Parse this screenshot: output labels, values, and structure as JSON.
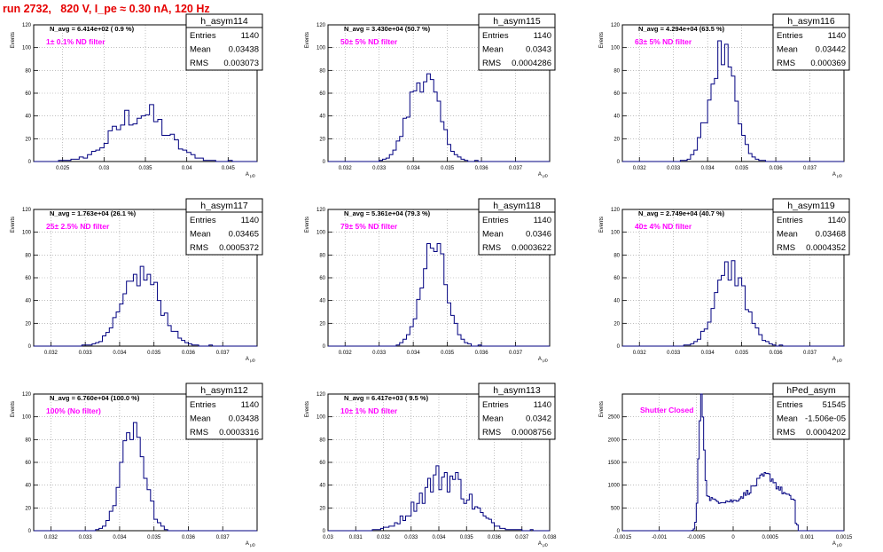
{
  "header": {
    "title": "run 2732,   820 V, I_pe ≈ 0.30 nA, 120 Hz"
  },
  "colors": {
    "title": "#e60000",
    "histogram": "#000080",
    "annotation": "#ff00ff",
    "grid": "#999999"
  },
  "stats_labels": {
    "entries": "Entries",
    "mean": "Mean",
    "rms": "RMS"
  },
  "chart_data": [
    {
      "type": "histogram",
      "title": "h_asym114",
      "ylabel": "Events",
      "xlabel": "A_{μD}",
      "xlim": [
        0.0215,
        0.0485
      ],
      "ylim": [
        0,
        120
      ],
      "xticks": [
        "0.025",
        "0.03",
        "0.035",
        "0.04",
        "0.045"
      ],
      "yticks": [
        "0",
        "20",
        "40",
        "60",
        "80",
        "100",
        "120"
      ],
      "grid": true,
      "n_avg": "N_avg = 6.414e+02 ( 0.9 %)",
      "filter": "1± 0.1% ND filter",
      "stats": {
        "entries": "1140",
        "mean": "0.03438",
        "rms": "0.003073"
      },
      "mean": 0.03438,
      "rms": 0.003073,
      "peak": 43,
      "bin_width": 0.0005,
      "shape": "noisy"
    },
    {
      "type": "histogram",
      "title": "h_asym115",
      "ylabel": "Events",
      "xlabel": "A_{μD}",
      "xlim": [
        0.0315,
        0.038
      ],
      "ylim": [
        0,
        120
      ],
      "xticks": [
        "0.032",
        "0.033",
        "0.034",
        "0.035",
        "0.036",
        "0.037"
      ],
      "yticks": [
        "0",
        "20",
        "40",
        "60",
        "80",
        "100",
        "120"
      ],
      "grid": true,
      "n_avg": "N_avg = 3.430e+04 (50.7 %)",
      "filter": "50± 5% ND filter",
      "stats": {
        "entries": "1140",
        "mean": "0.0343",
        "rms": "0.0004286"
      },
      "mean": 0.0343,
      "rms": 0.0004286,
      "peak": 76,
      "bin_width": 0.0001,
      "shape": "gauss"
    },
    {
      "type": "histogram",
      "title": "h_asym116",
      "ylabel": "Events",
      "xlabel": "A_{μD}",
      "xlim": [
        0.0315,
        0.038
      ],
      "ylim": [
        0,
        120
      ],
      "xticks": [
        "0.032",
        "0.033",
        "0.034",
        "0.035",
        "0.036",
        "0.037"
      ],
      "yticks": [
        "0",
        "20",
        "40",
        "60",
        "80",
        "100",
        "120"
      ],
      "grid": true,
      "n_avg": "N_avg = 4.294e+04 (63.5 %)",
      "filter": "63± 5% ND filter",
      "stats": {
        "entries": "1140",
        "mean": "0.03442",
        "rms": "0.000369"
      },
      "mean": 0.03442,
      "rms": 0.000369,
      "peak": 93,
      "bin_width": 0.0001,
      "shape": "gauss"
    },
    {
      "type": "histogram",
      "title": "h_asym117",
      "ylabel": "Events",
      "xlabel": "A_{μD}",
      "xlim": [
        0.0315,
        0.038
      ],
      "ylim": [
        0,
        120
      ],
      "xticks": [
        "0.032",
        "0.033",
        "0.034",
        "0.035",
        "0.036",
        "0.037"
      ],
      "yticks": [
        "0",
        "20",
        "40",
        "60",
        "80",
        "100",
        "120"
      ],
      "grid": true,
      "n_avg": "N_avg = 1.763e+04 (26.1 %)",
      "filter": "25± 2.5% ND filter",
      "stats": {
        "entries": "1140",
        "mean": "0.03465",
        "rms": "0.0005372"
      },
      "mean": 0.03465,
      "rms": 0.0005372,
      "peak": 63,
      "bin_width": 0.0001,
      "shape": "gauss"
    },
    {
      "type": "histogram",
      "title": "h_asym118",
      "ylabel": "Events",
      "xlabel": "A_{μD}",
      "xlim": [
        0.0315,
        0.038
      ],
      "ylim": [
        0,
        120
      ],
      "xticks": [
        "0.032",
        "0.033",
        "0.034",
        "0.035",
        "0.036",
        "0.037"
      ],
      "yticks": [
        "0",
        "20",
        "40",
        "60",
        "80",
        "100",
        "120"
      ],
      "grid": true,
      "n_avg": "N_avg = 5.361e+04 (79.3 %)",
      "filter": "79± 5% ND filter",
      "stats": {
        "entries": "1140",
        "mean": "0.0346",
        "rms": "0.0003622"
      },
      "mean": 0.0346,
      "rms": 0.0003622,
      "peak": 87,
      "bin_width": 0.0001,
      "shape": "gauss"
    },
    {
      "type": "histogram",
      "title": "h_asym119",
      "ylabel": "Events",
      "xlabel": "A_{μD}",
      "xlim": [
        0.0315,
        0.038
      ],
      "ylim": [
        0,
        120
      ],
      "xticks": [
        "0.032",
        "0.033",
        "0.034",
        "0.035",
        "0.036",
        "0.037"
      ],
      "yticks": [
        "0",
        "20",
        "40",
        "60",
        "80",
        "100",
        "120"
      ],
      "grid": true,
      "n_avg": "N_avg = 2.749e+04 (40.7 %)",
      "filter": "40± 4% ND filter",
      "stats": {
        "entries": "1140",
        "mean": "0.03468",
        "rms": "0.0004352"
      },
      "mean": 0.03468,
      "rms": 0.0004352,
      "peak": 68,
      "bin_width": 0.0001,
      "shape": "gauss"
    },
    {
      "type": "histogram",
      "title": "h_asym112",
      "ylabel": "Events",
      "xlabel": "A_{μD}",
      "xlim": [
        0.0315,
        0.038
      ],
      "ylim": [
        0,
        120
      ],
      "xticks": [
        "0.032",
        "0.033",
        "0.034",
        "0.035",
        "0.036",
        "0.037"
      ],
      "yticks": [
        "0",
        "20",
        "40",
        "60",
        "80",
        "100",
        "120"
      ],
      "grid": true,
      "n_avg": "N_avg = 6.760e+04 (100.0 %)",
      "filter": "100% (No filter)",
      "stats": {
        "entries": "1140",
        "mean": "0.03438",
        "rms": "0.0003316"
      },
      "mean": 0.03438,
      "rms": 0.0003316,
      "peak": 96,
      "bin_width": 0.0001,
      "shape": "gauss"
    },
    {
      "type": "histogram",
      "title": "h_asym113",
      "ylabel": "Events",
      "xlabel": "A_{μD}",
      "xlim": [
        0.03,
        0.038
      ],
      "ylim": [
        0,
        120
      ],
      "xticks": [
        "0.03",
        "0.031",
        "0.032",
        "0.033",
        "0.034",
        "0.035",
        "0.036",
        "0.037",
        "0.038"
      ],
      "yticks": [
        "0",
        "20",
        "40",
        "60",
        "80",
        "100",
        "120"
      ],
      "grid": true,
      "n_avg": "N_avg = 6.417e+03 ( 9.5 %)",
      "filter": "10± 1% ND filter",
      "stats": {
        "entries": "1140",
        "mean": "0.0342",
        "rms": "0.0008756"
      },
      "mean": 0.0342,
      "rms": 0.0008756,
      "peak": 48,
      "bin_width": 0.0001,
      "shape": "noisy"
    },
    {
      "type": "histogram",
      "title": "hPed_asym",
      "ylabel": "Events",
      "xlabel": "A_{μD}",
      "xlim": [
        -0.0015,
        0.0015
      ],
      "ylim": [
        0,
        3000
      ],
      "xticks": [
        "-0.0015",
        "-0.001",
        "-0.0005",
        "0",
        "0.0005",
        "0.001",
        "0.0015"
      ],
      "yticks": [
        "0",
        "500",
        "1000",
        "1500",
        "2000",
        "2500"
      ],
      "grid": true,
      "filter": "Shutter Closed",
      "stats": {
        "entries": "51545",
        "mean": "-1.506e-05",
        "rms": "0.0004202"
      },
      "mean": -1.506e-05,
      "rms": 0.0004202,
      "peak": 2850,
      "bin_width": 2e-05,
      "shape": "ped"
    }
  ]
}
